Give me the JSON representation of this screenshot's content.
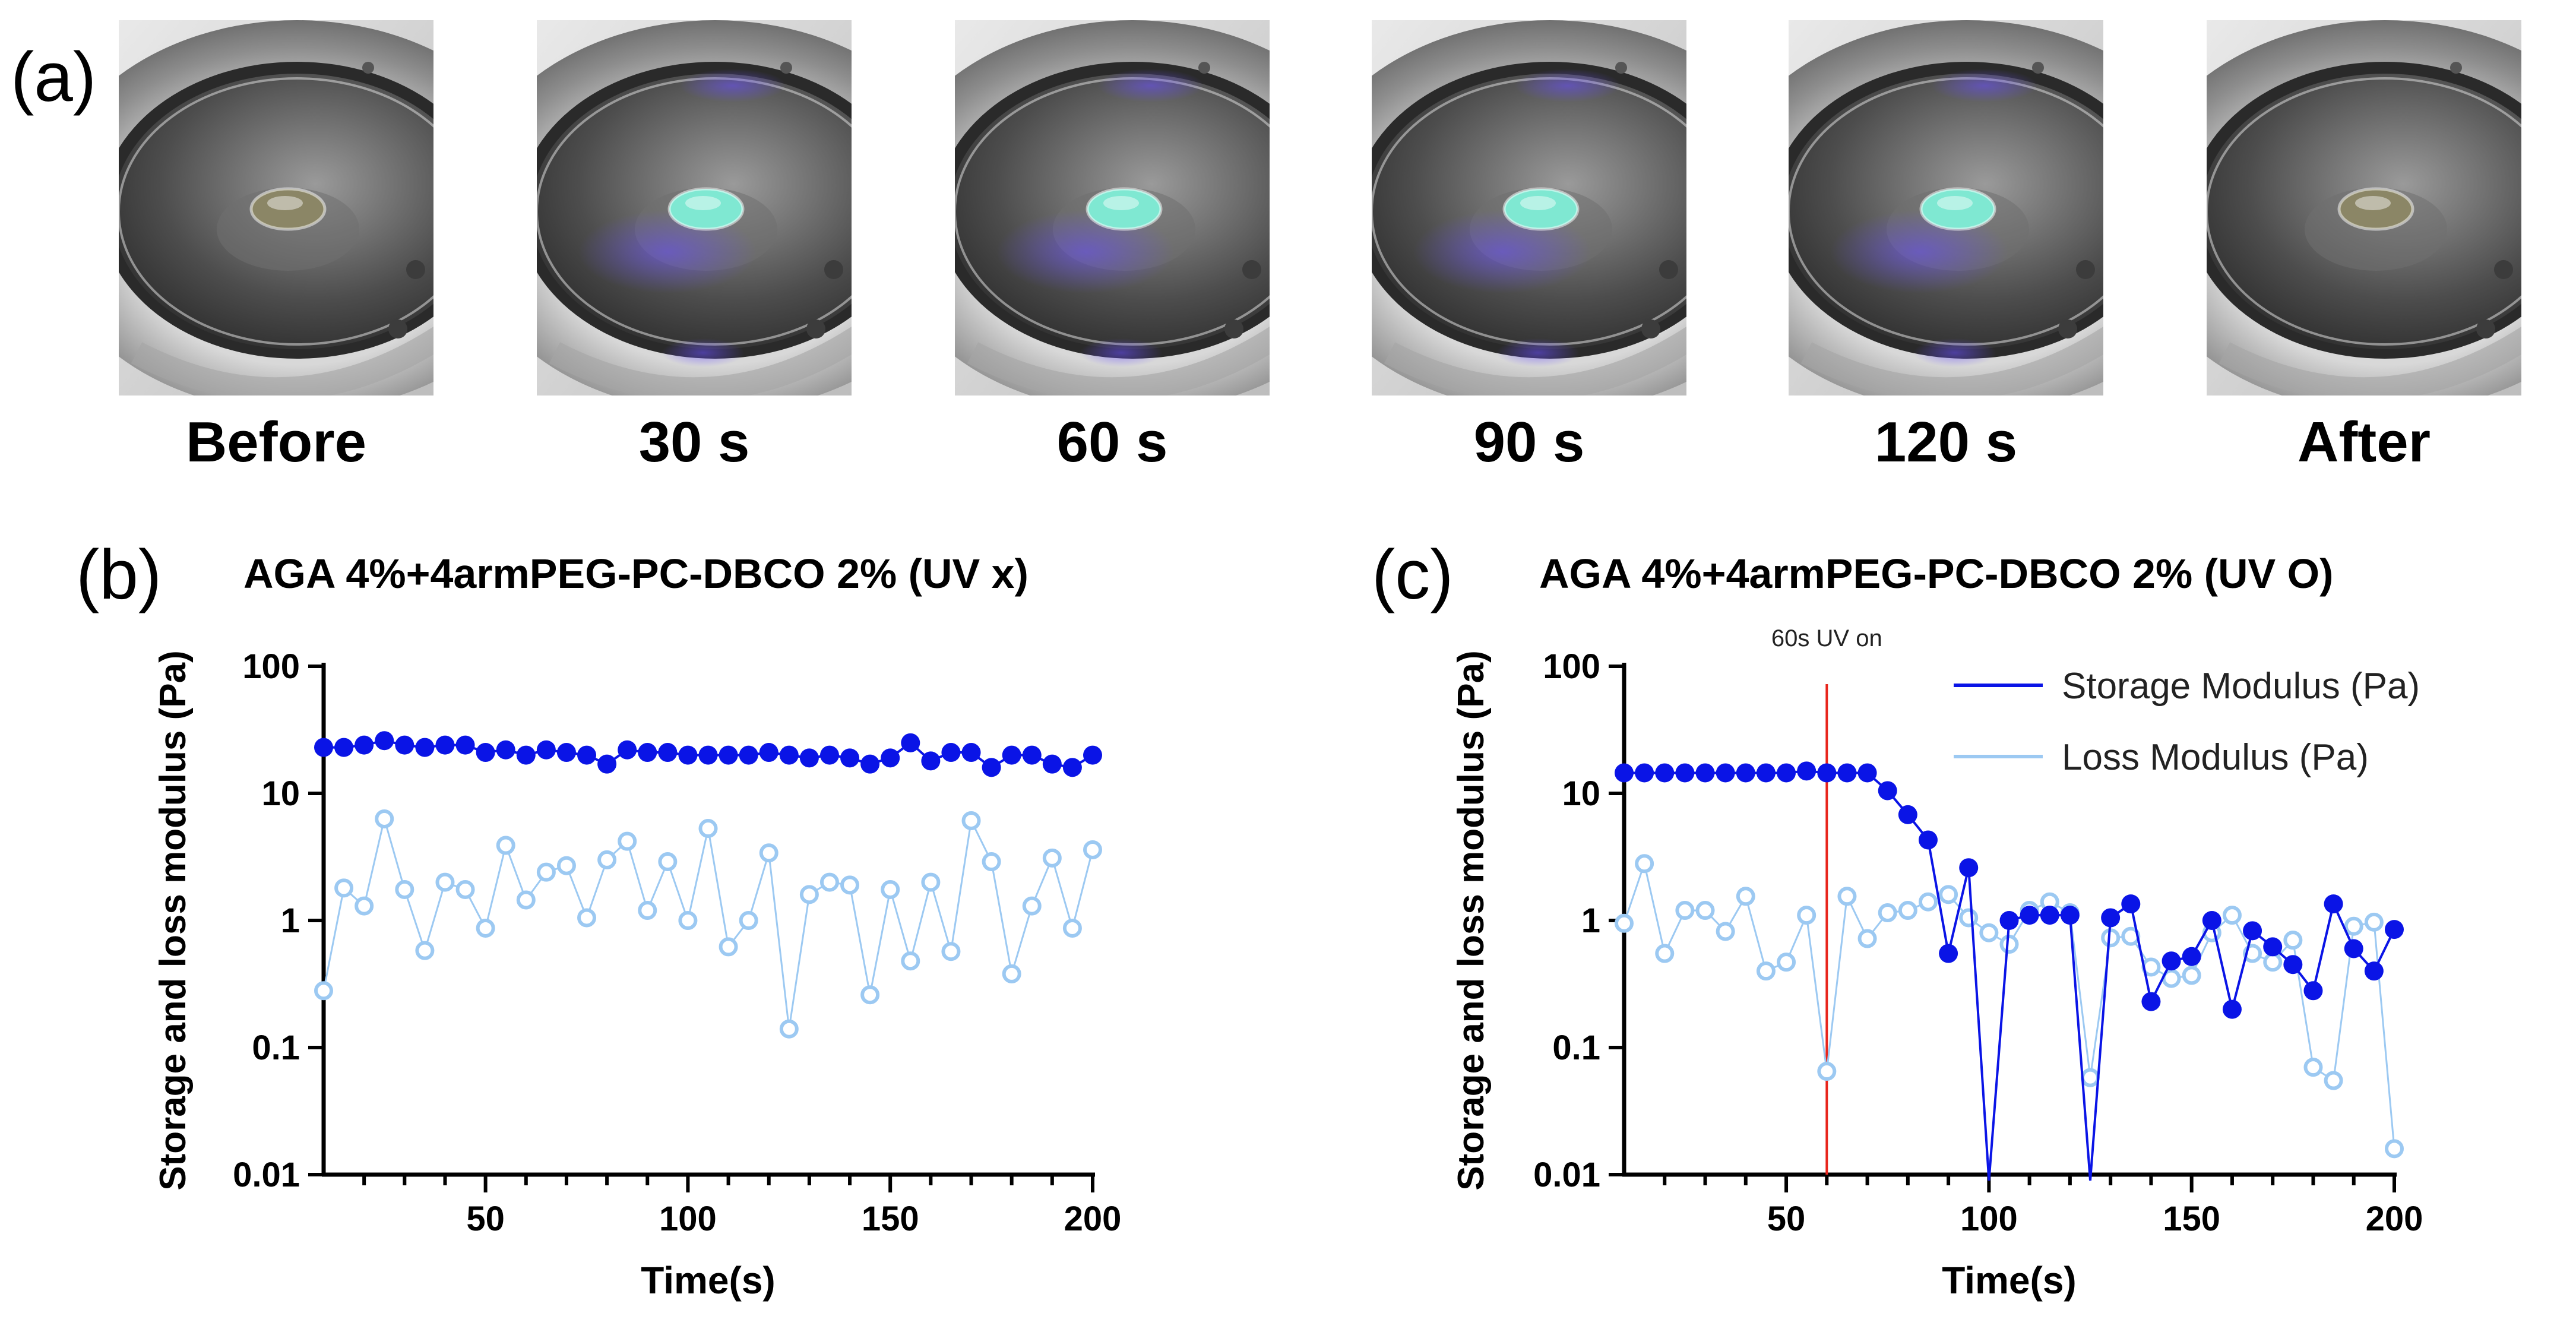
{
  "panel_a": {
    "label": "(a)",
    "captions": [
      "Before",
      "30 s",
      "60 s",
      "90 s",
      "120 s",
      "After"
    ]
  },
  "colors": {
    "storage": "#0A14E6",
    "loss": "#9CC9F2",
    "uv_line": "#E8251C",
    "gel_uv": "#7FE8D2",
    "gel_plain": "#8B8666",
    "uv_glow": "#6A50FF"
  },
  "chart_data": [
    {
      "type": "scatter",
      "panel_label": "(b)",
      "title": "AGA 4%+4armPEG-PC-DBCO 2% (UV x)",
      "xlabel": "Time(s)",
      "ylabel": "Storage and loss modulus (Pa)",
      "xlim": [
        10,
        200
      ],
      "ylim": [
        0.01,
        100
      ],
      "yscale": "log",
      "x_ticks": [
        50,
        100,
        150,
        200
      ],
      "y_ticks": [
        0.01,
        0.1,
        1,
        10,
        100
      ],
      "y_tick_labels": [
        "0.01",
        "0.1",
        "1",
        "10",
        "100"
      ],
      "legend": null,
      "series": [
        {
          "marker": "filled-circle",
          "x": [
            10,
            15,
            20,
            25,
            30,
            35,
            40,
            45,
            50,
            55,
            60,
            65,
            70,
            75,
            80,
            85,
            90,
            95,
            100,
            105,
            110,
            115,
            120,
            125,
            130,
            135,
            140,
            145,
            150,
            155,
            160,
            165,
            170,
            175,
            180,
            185,
            190,
            195,
            200
          ],
          "values": [
            23,
            23,
            24,
            26,
            24,
            23,
            24,
            24,
            21,
            22,
            20,
            22,
            21,
            20,
            17,
            22,
            21,
            21,
            20,
            20,
            20,
            20,
            21,
            20,
            19,
            20,
            19,
            17,
            19,
            25,
            18,
            21,
            21,
            16,
            20,
            20,
            17,
            16,
            20
          ]
        },
        {
          "marker": "open-circle",
          "x": [
            10,
            15,
            20,
            25,
            30,
            35,
            40,
            45,
            50,
            55,
            60,
            65,
            70,
            75,
            80,
            85,
            90,
            95,
            100,
            105,
            110,
            115,
            120,
            125,
            130,
            135,
            140,
            145,
            150,
            155,
            160,
            165,
            170,
            175,
            180,
            185,
            190,
            195,
            200
          ],
          "values": [
            0.28,
            1.8,
            1.3,
            6.3,
            1.75,
            0.58,
            2.0,
            1.75,
            0.87,
            3.9,
            1.45,
            2.4,
            2.7,
            1.05,
            3.0,
            4.2,
            1.2,
            2.9,
            1.0,
            5.3,
            0.62,
            1.0,
            3.4,
            0.14,
            1.6,
            2.0,
            1.9,
            0.26,
            1.75,
            0.48,
            2.0,
            0.57,
            6.1,
            2.9,
            0.38,
            1.3,
            3.1,
            0.87,
            3.6
          ]
        }
      ]
    },
    {
      "type": "line",
      "panel_label": "(c)",
      "title": "AGA 4%+4armPEG-PC-DBCO 2% (UV O)",
      "xlabel": "Time(s)",
      "ylabel": "Storage and loss modulus (Pa)",
      "xlim": [
        10,
        200
      ],
      "ylim": [
        0.01,
        100
      ],
      "yscale": "log",
      "x_ticks": [
        50,
        100,
        150,
        200
      ],
      "y_ticks": [
        0.01,
        0.1,
        1,
        10,
        100
      ],
      "y_tick_labels": [
        "0.01",
        "0.1",
        "1",
        "10",
        "100"
      ],
      "annotation": {
        "text": "60s UV on",
        "x": 60
      },
      "legend": {
        "placement": "top-right"
      },
      "series": [
        {
          "name": "Storage Modulus (Pa)",
          "marker": "filled-circle",
          "x": [
            10,
            15,
            20,
            25,
            30,
            35,
            40,
            45,
            50,
            55,
            60,
            65,
            70,
            75,
            80,
            85,
            90,
            95,
            100,
            105,
            110,
            115,
            120,
            125,
            130,
            135,
            140,
            145,
            150,
            155,
            160,
            165,
            170,
            175,
            180,
            185,
            190,
            195,
            200
          ],
          "values": [
            14.5,
            14.5,
            14.5,
            14.5,
            14.5,
            14.5,
            14.5,
            14.5,
            14.5,
            15,
            14.5,
            14.5,
            14.5,
            10.5,
            6.8,
            4.3,
            0.55,
            2.6,
            0.001,
            1.0,
            1.1,
            1.1,
            1.1,
            0.003,
            1.05,
            1.35,
            0.23,
            0.48,
            0.52,
            1.0,
            0.2,
            0.83,
            0.62,
            0.45,
            0.28,
            1.35,
            0.6,
            0.4,
            0.85
          ]
        },
        {
          "name": "Loss Modulus (Pa)",
          "marker": "open-circle",
          "x": [
            10,
            15,
            20,
            25,
            30,
            35,
            40,
            45,
            50,
            55,
            60,
            65,
            70,
            75,
            80,
            85,
            90,
            95,
            100,
            105,
            110,
            115,
            120,
            125,
            130,
            135,
            140,
            145,
            150,
            155,
            160,
            165,
            170,
            175,
            180,
            185,
            190,
            195,
            200
          ],
          "values": [
            0.95,
            2.8,
            0.55,
            1.2,
            1.2,
            0.82,
            1.55,
            0.4,
            0.47,
            1.1,
            0.065,
            1.55,
            0.72,
            1.15,
            1.2,
            1.4,
            1.6,
            1.05,
            0.8,
            0.65,
            1.2,
            1.4,
            1.15,
            0.058,
            0.73,
            0.75,
            0.43,
            0.35,
            0.37,
            0.8,
            1.1,
            0.55,
            0.47,
            0.7,
            0.07,
            0.055,
            0.9,
            0.97,
            0.016
          ]
        }
      ]
    }
  ]
}
